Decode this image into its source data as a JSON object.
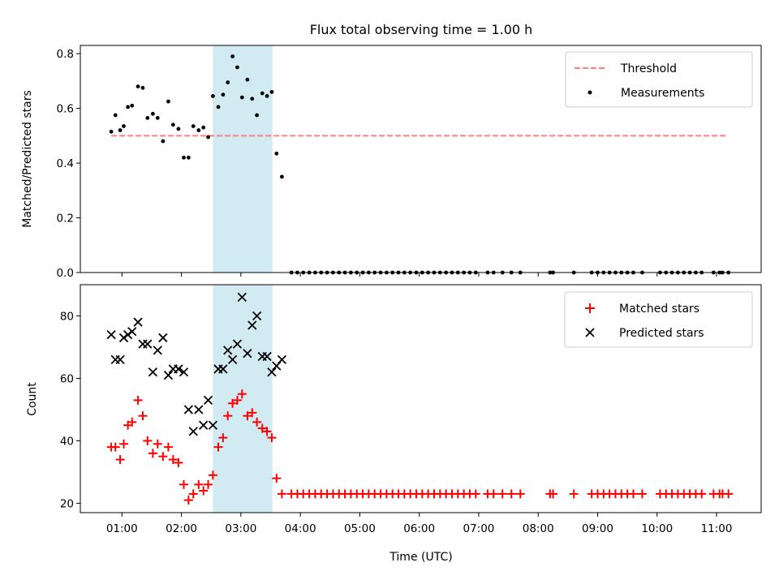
{
  "chart_data": {
    "title": "Flux total observing time = 1.00 h",
    "xlabel": "Time (UTC)",
    "x_tick_labels": [
      "01:00",
      "02:00",
      "03:00",
      "04:00",
      "05:00",
      "06:00",
      "07:00",
      "08:00",
      "09:00",
      "10:00",
      "11:00"
    ],
    "x_ticks_hours": [
      1,
      2,
      3,
      4,
      5,
      6,
      7,
      8,
      9,
      10,
      11
    ],
    "xlim_hours": [
      0.3,
      11.75
    ],
    "shaded_span_hours": [
      2.53,
      3.53
    ],
    "shade_color": "#add8e6",
    "top": {
      "type": "scatter",
      "ylabel": "Matched/Predicted stars",
      "ylim": [
        0,
        0.83
      ],
      "yticks": [
        0.0,
        0.2,
        0.4,
        0.6,
        0.8
      ],
      "ytick_labels": [
        "0.0",
        "0.2",
        "0.4",
        "0.6",
        "0.8"
      ],
      "threshold": {
        "name": "Threshold",
        "value": 0.5,
        "x_range": [
          0.82,
          11.17
        ],
        "color": "#ff7f7f"
      },
      "measurements_name": "Measurements",
      "measurements": [
        [
          0.82,
          0.515
        ],
        [
          0.89,
          0.575
        ],
        [
          0.97,
          0.52
        ],
        [
          1.03,
          0.535
        ],
        [
          1.1,
          0.605
        ],
        [
          1.17,
          0.61
        ],
        [
          1.27,
          0.68
        ],
        [
          1.35,
          0.675
        ],
        [
          1.43,
          0.565
        ],
        [
          1.52,
          0.58
        ],
        [
          1.6,
          0.565
        ],
        [
          1.69,
          0.48
        ],
        [
          1.78,
          0.625
        ],
        [
          1.86,
          0.54
        ],
        [
          1.95,
          0.525
        ],
        [
          2.04,
          0.42
        ],
        [
          2.12,
          0.42
        ],
        [
          2.2,
          0.535
        ],
        [
          2.29,
          0.52
        ],
        [
          2.37,
          0.53
        ],
        [
          2.45,
          0.495
        ],
        [
          2.53,
          0.645
        ],
        [
          2.62,
          0.605
        ],
        [
          2.7,
          0.65
        ],
        [
          2.78,
          0.695
        ],
        [
          2.86,
          0.79
        ],
        [
          2.94,
          0.75
        ],
        [
          3.02,
          0.64
        ],
        [
          3.11,
          0.705
        ],
        [
          3.19,
          0.635
        ],
        [
          3.27,
          0.575
        ],
        [
          3.36,
          0.655
        ],
        [
          3.44,
          0.645
        ],
        [
          3.52,
          0.66
        ],
        [
          3.6,
          0.435
        ],
        [
          3.69,
          0.35
        ],
        [
          3.85,
          0
        ],
        [
          3.95,
          0
        ],
        [
          4.05,
          0
        ],
        [
          4.15,
          0
        ],
        [
          4.25,
          0
        ],
        [
          4.35,
          0
        ],
        [
          4.45,
          0
        ],
        [
          4.55,
          0
        ],
        [
          4.65,
          0
        ],
        [
          4.75,
          0
        ],
        [
          4.85,
          0
        ],
        [
          4.95,
          0
        ],
        [
          5.05,
          0
        ],
        [
          5.15,
          0
        ],
        [
          5.25,
          0
        ],
        [
          5.35,
          0
        ],
        [
          5.45,
          0
        ],
        [
          5.55,
          0
        ],
        [
          5.65,
          0
        ],
        [
          5.75,
          0
        ],
        [
          5.85,
          0
        ],
        [
          5.95,
          0
        ],
        [
          6.05,
          0
        ],
        [
          6.15,
          0
        ],
        [
          6.25,
          0
        ],
        [
          6.35,
          0
        ],
        [
          6.45,
          0
        ],
        [
          6.55,
          0
        ],
        [
          6.65,
          0
        ],
        [
          6.75,
          0
        ],
        [
          6.85,
          0
        ],
        [
          6.95,
          0
        ],
        [
          7.15,
          0
        ],
        [
          7.25,
          0
        ],
        [
          7.4,
          0
        ],
        [
          7.55,
          0
        ],
        [
          7.7,
          0
        ],
        [
          8.2,
          0
        ],
        [
          8.25,
          0
        ],
        [
          8.6,
          0
        ],
        [
          8.9,
          0
        ],
        [
          9.0,
          0
        ],
        [
          9.1,
          0
        ],
        [
          9.2,
          0
        ],
        [
          9.3,
          0
        ],
        [
          9.4,
          0
        ],
        [
          9.5,
          0
        ],
        [
          9.6,
          0
        ],
        [
          9.75,
          0
        ],
        [
          10.05,
          0
        ],
        [
          10.15,
          0
        ],
        [
          10.25,
          0
        ],
        [
          10.35,
          0
        ],
        [
          10.45,
          0
        ],
        [
          10.55,
          0
        ],
        [
          10.65,
          0
        ],
        [
          10.75,
          0
        ],
        [
          10.95,
          0
        ],
        [
          11.05,
          0
        ],
        [
          11.1,
          0
        ],
        [
          11.2,
          0
        ]
      ],
      "legend_placement": "top-right"
    },
    "bottom": {
      "type": "scatter",
      "ylabel": "Count",
      "ylim": [
        17,
        90
      ],
      "yticks": [
        20,
        40,
        60,
        80
      ],
      "ytick_labels": [
        "20",
        "40",
        "60",
        "80"
      ],
      "legend_placement": "top-right",
      "series": [
        {
          "name": "Matched stars",
          "marker": "+",
          "color": "#ff0000",
          "points": [
            [
              0.82,
              38
            ],
            [
              0.89,
              38
            ],
            [
              0.97,
              34
            ],
            [
              1.03,
              39
            ],
            [
              1.1,
              45
            ],
            [
              1.17,
              46
            ],
            [
              1.27,
              53
            ],
            [
              1.35,
              48
            ],
            [
              1.43,
              40
            ],
            [
              1.52,
              36
            ],
            [
              1.6,
              39
            ],
            [
              1.69,
              35
            ],
            [
              1.78,
              38
            ],
            [
              1.86,
              34
            ],
            [
              1.95,
              33
            ],
            [
              2.04,
              26
            ],
            [
              2.12,
              21
            ],
            [
              2.2,
              23
            ],
            [
              2.29,
              26
            ],
            [
              2.37,
              24
            ],
            [
              2.45,
              26
            ],
            [
              2.53,
              29
            ],
            [
              2.62,
              38
            ],
            [
              2.7,
              41
            ],
            [
              2.78,
              48
            ],
            [
              2.86,
              52
            ],
            [
              2.94,
              53
            ],
            [
              3.02,
              55
            ],
            [
              3.11,
              48
            ],
            [
              3.19,
              49
            ],
            [
              3.27,
              46
            ],
            [
              3.36,
              44
            ],
            [
              3.44,
              43
            ],
            [
              3.52,
              41
            ],
            [
              3.6,
              28
            ],
            [
              3.69,
              23
            ],
            [
              3.85,
              23
            ],
            [
              3.95,
              23
            ],
            [
              4.05,
              23
            ],
            [
              4.15,
              23
            ],
            [
              4.25,
              23
            ],
            [
              4.35,
              23
            ],
            [
              4.45,
              23
            ],
            [
              4.55,
              23
            ],
            [
              4.65,
              23
            ],
            [
              4.75,
              23
            ],
            [
              4.85,
              23
            ],
            [
              4.95,
              23
            ],
            [
              5.05,
              23
            ],
            [
              5.15,
              23
            ],
            [
              5.25,
              23
            ],
            [
              5.35,
              23
            ],
            [
              5.45,
              23
            ],
            [
              5.55,
              23
            ],
            [
              5.65,
              23
            ],
            [
              5.75,
              23
            ],
            [
              5.85,
              23
            ],
            [
              5.95,
              23
            ],
            [
              6.05,
              23
            ],
            [
              6.15,
              23
            ],
            [
              6.25,
              23
            ],
            [
              6.35,
              23
            ],
            [
              6.45,
              23
            ],
            [
              6.55,
              23
            ],
            [
              6.65,
              23
            ],
            [
              6.75,
              23
            ],
            [
              6.85,
              23
            ],
            [
              6.95,
              23
            ],
            [
              7.15,
              23
            ],
            [
              7.25,
              23
            ],
            [
              7.4,
              23
            ],
            [
              7.55,
              23
            ],
            [
              7.7,
              23
            ],
            [
              8.2,
              23
            ],
            [
              8.25,
              23
            ],
            [
              8.6,
              23
            ],
            [
              8.9,
              23
            ],
            [
              9.0,
              23
            ],
            [
              9.1,
              23
            ],
            [
              9.2,
              23
            ],
            [
              9.3,
              23
            ],
            [
              9.4,
              23
            ],
            [
              9.5,
              23
            ],
            [
              9.6,
              23
            ],
            [
              9.75,
              23
            ],
            [
              10.05,
              23
            ],
            [
              10.15,
              23
            ],
            [
              10.25,
              23
            ],
            [
              10.35,
              23
            ],
            [
              10.45,
              23
            ],
            [
              10.55,
              23
            ],
            [
              10.65,
              23
            ],
            [
              10.75,
              23
            ],
            [
              10.95,
              23
            ],
            [
              11.05,
              23
            ],
            [
              11.1,
              23
            ],
            [
              11.2,
              23
            ]
          ]
        },
        {
          "name": "Predicted stars",
          "marker": "x",
          "color": "#000000",
          "points": [
            [
              0.82,
              74
            ],
            [
              0.89,
              66
            ],
            [
              0.97,
              66
            ],
            [
              1.03,
              73
            ],
            [
              1.1,
              74
            ],
            [
              1.17,
              75
            ],
            [
              1.27,
              78
            ],
            [
              1.35,
              71
            ],
            [
              1.43,
              71
            ],
            [
              1.52,
              62
            ],
            [
              1.6,
              69
            ],
            [
              1.69,
              73
            ],
            [
              1.78,
              61
            ],
            [
              1.86,
              63
            ],
            [
              1.95,
              63
            ],
            [
              2.04,
              62
            ],
            [
              2.12,
              50
            ],
            [
              2.2,
              43
            ],
            [
              2.29,
              50
            ],
            [
              2.37,
              45
            ],
            [
              2.45,
              53
            ],
            [
              2.53,
              45
            ],
            [
              2.62,
              63
            ],
            [
              2.7,
              63
            ],
            [
              2.78,
              69
            ],
            [
              2.86,
              66
            ],
            [
              2.94,
              71
            ],
            [
              3.02,
              86
            ],
            [
              3.11,
              68
            ],
            [
              3.19,
              77
            ],
            [
              3.27,
              80
            ],
            [
              3.36,
              67
            ],
            [
              3.44,
              67
            ],
            [
              3.52,
              62
            ],
            [
              3.6,
              64
            ],
            [
              3.69,
              66
            ]
          ]
        }
      ]
    }
  }
}
